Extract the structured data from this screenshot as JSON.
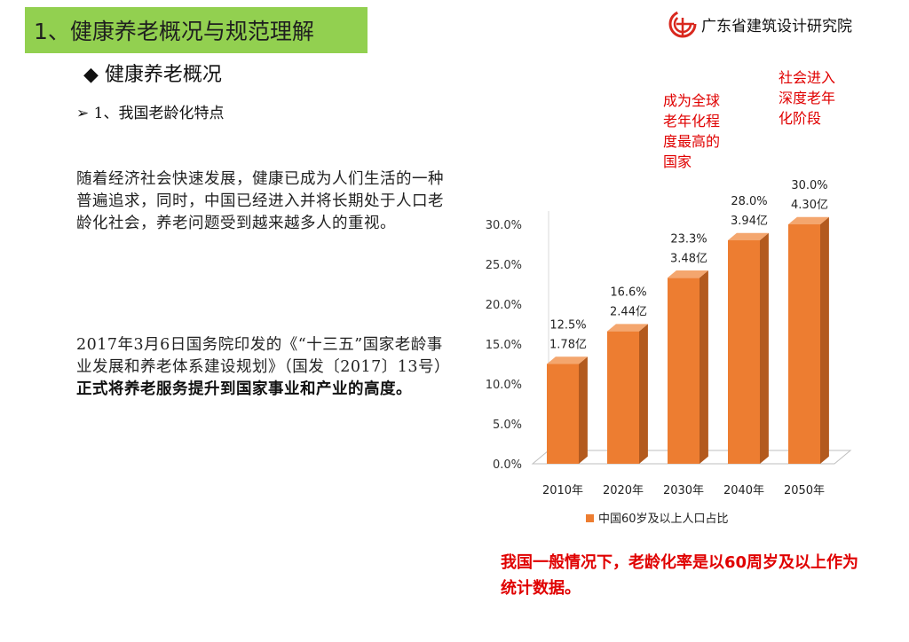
{
  "header": {
    "title": "1、健康养老概况与规范理解",
    "org": "广东省建筑设计研究院"
  },
  "section": {
    "bullet": "◆",
    "title": "健康养老概况"
  },
  "subsection": {
    "bullet": "➢",
    "title": "1、我国老龄化特点"
  },
  "paragraphs": {
    "p1": "随着经济社会快速发展，健康已成为人们生活的一种普遍追求，同时，中国已经进入并将长期处于人口老龄化社会，养老问题受到越来越多人的重视。",
    "p2_normal": "2017年3月6日国务院印发的《“十三五”国家老龄事业发展和养老体系建设规划》（国发〔2017〕13号）",
    "p2_bold": "正式将养老服务提升到国家事业和产业的高度。"
  },
  "annotations": {
    "a1": "成为全球老年化程度最高的国家",
    "a2": "社会进入深度老年化阶段"
  },
  "note": "我国一般情况下，老龄化率是以60周岁及以上作为统计数据。",
  "colors": {
    "title_bg": "#92d050",
    "bar": "#ed7d31",
    "accent_red": "#e00000"
  },
  "chart_data": {
    "type": "bar",
    "categories": [
      "2010年",
      "2020年",
      "2030年",
      "2040年",
      "2050年"
    ],
    "series": [
      {
        "name": "中国60岁及以上人口占比",
        "values": [
          12.5,
          16.6,
          23.3,
          28.0,
          30.0
        ]
      }
    ],
    "data_labels": [
      [
        "12.5%",
        "1.78亿"
      ],
      [
        "16.6%",
        "2.44亿"
      ],
      [
        "23.3%",
        "3.48亿"
      ],
      [
        "28.0%",
        "3.94亿"
      ],
      [
        "30.0%",
        "4.30亿"
      ]
    ],
    "y_ticks": [
      "0.0%",
      "5.0%",
      "10.0%",
      "15.0%",
      "20.0%",
      "25.0%",
      "30.0%"
    ],
    "ylim": [
      0,
      30
    ],
    "legend_position": "bottom",
    "grid": false,
    "style": "3d"
  }
}
